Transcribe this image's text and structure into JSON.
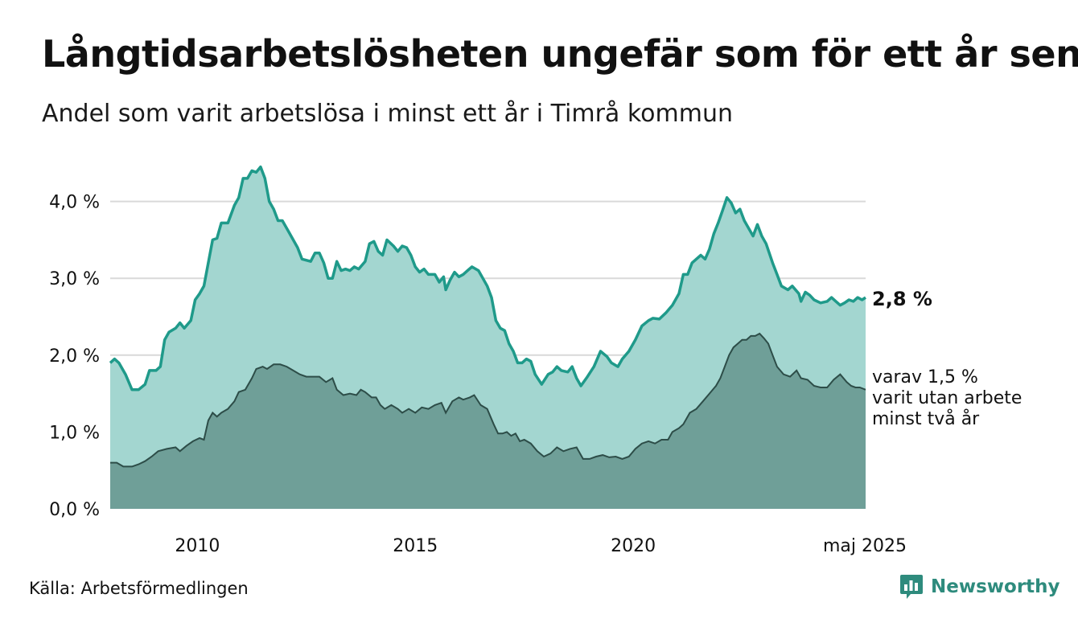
{
  "title": "Långtidsarbetslösheten ungefär som för ett år sen",
  "subtitle": "Andel som varit arbetslösa i minst ett år i Timrå kommun",
  "source": "Källa: Arbetsförmedlingen",
  "brand": "Newsworthy",
  "colors": {
    "area_total": "#a3d6d0",
    "line_total": "#1f9a8a",
    "area_two_year": "#6f9f98",
    "line_two_year": "#2d4d48",
    "grid": "#d9d9d9",
    "brand": "#2e8b7d"
  },
  "labels": {
    "latest_total": "2,8 %",
    "two_year_line1": "varav 1,5 %",
    "two_year_line2": "varit utan arbete",
    "two_year_line3": "minst två år"
  },
  "chart_data": {
    "type": "area",
    "title": "Långtidsarbetslösheten ungefär som för ett år sen",
    "subtitle": "Andel som varit arbetslösa i minst ett år i Timrå kommun",
    "xlabel": "",
    "ylabel": "",
    "x_start": 2008.0,
    "x_end": 2025.333,
    "ylim": [
      0,
      4.4
    ],
    "yticks": [
      {
        "value": 0,
        "label": "0,0 %"
      },
      {
        "value": 1,
        "label": "1,0 %"
      },
      {
        "value": 2,
        "label": "2,0 %"
      },
      {
        "value": 3,
        "label": "3,0 %"
      },
      {
        "value": 4,
        "label": "4,0 %"
      }
    ],
    "xticks": [
      {
        "value": 2010,
        "label": "2010"
      },
      {
        "value": 2015,
        "label": "2015"
      },
      {
        "value": 2020,
        "label": "2020"
      },
      {
        "value": 2025.333,
        "label": "maj 2025"
      }
    ],
    "grid": true,
    "legend": "none",
    "series": [
      {
        "key": "total",
        "points": [
          [
            2008.0,
            1.9
          ],
          [
            2008.1,
            1.95
          ],
          [
            2008.2,
            1.9
          ],
          [
            2008.35,
            1.75
          ],
          [
            2008.5,
            1.55
          ],
          [
            2008.65,
            1.55
          ],
          [
            2008.8,
            1.62
          ],
          [
            2008.9,
            1.8
          ],
          [
            2009.05,
            1.8
          ],
          [
            2009.15,
            1.85
          ],
          [
            2009.25,
            2.2
          ],
          [
            2009.35,
            2.3
          ],
          [
            2009.5,
            2.35
          ],
          [
            2009.6,
            2.42
          ],
          [
            2009.7,
            2.35
          ],
          [
            2009.85,
            2.45
          ],
          [
            2009.95,
            2.72
          ],
          [
            2010.05,
            2.8
          ],
          [
            2010.15,
            2.9
          ],
          [
            2010.25,
            3.2
          ],
          [
            2010.35,
            3.5
          ],
          [
            2010.45,
            3.52
          ],
          [
            2010.55,
            3.72
          ],
          [
            2010.7,
            3.72
          ],
          [
            2010.85,
            3.95
          ],
          [
            2010.95,
            4.05
          ],
          [
            2011.05,
            4.3
          ],
          [
            2011.15,
            4.3
          ],
          [
            2011.25,
            4.4
          ],
          [
            2011.35,
            4.38
          ],
          [
            2011.45,
            4.45
          ],
          [
            2011.55,
            4.3
          ],
          [
            2011.65,
            4.0
          ],
          [
            2011.75,
            3.9
          ],
          [
            2011.85,
            3.75
          ],
          [
            2011.95,
            3.75
          ],
          [
            2012.1,
            3.6
          ],
          [
            2012.3,
            3.4
          ],
          [
            2012.4,
            3.25
          ],
          [
            2012.6,
            3.22
          ],
          [
            2012.7,
            3.33
          ],
          [
            2012.8,
            3.33
          ],
          [
            2012.9,
            3.2
          ],
          [
            2013.0,
            3.0
          ],
          [
            2013.1,
            3.0
          ],
          [
            2013.2,
            3.22
          ],
          [
            2013.3,
            3.1
          ],
          [
            2013.4,
            3.12
          ],
          [
            2013.5,
            3.1
          ],
          [
            2013.6,
            3.15
          ],
          [
            2013.7,
            3.12
          ],
          [
            2013.85,
            3.22
          ],
          [
            2013.95,
            3.45
          ],
          [
            2014.05,
            3.48
          ],
          [
            2014.15,
            3.35
          ],
          [
            2014.25,
            3.3
          ],
          [
            2014.35,
            3.5
          ],
          [
            2014.5,
            3.42
          ],
          [
            2014.6,
            3.35
          ],
          [
            2014.7,
            3.42
          ],
          [
            2014.8,
            3.4
          ],
          [
            2014.9,
            3.3
          ],
          [
            2015.0,
            3.15
          ],
          [
            2015.1,
            3.08
          ],
          [
            2015.2,
            3.12
          ],
          [
            2015.3,
            3.05
          ],
          [
            2015.45,
            3.05
          ],
          [
            2015.55,
            2.95
          ],
          [
            2015.65,
            3.02
          ],
          [
            2015.7,
            2.85
          ],
          [
            2015.8,
            2.98
          ],
          [
            2015.9,
            3.08
          ],
          [
            2016.0,
            3.02
          ],
          [
            2016.1,
            3.05
          ],
          [
            2016.2,
            3.1
          ],
          [
            2016.3,
            3.15
          ],
          [
            2016.45,
            3.1
          ],
          [
            2016.55,
            3.0
          ],
          [
            2016.65,
            2.9
          ],
          [
            2016.75,
            2.75
          ],
          [
            2016.85,
            2.45
          ],
          [
            2016.95,
            2.35
          ],
          [
            2017.05,
            2.32
          ],
          [
            2017.15,
            2.15
          ],
          [
            2017.25,
            2.05
          ],
          [
            2017.35,
            1.9
          ],
          [
            2017.45,
            1.9
          ],
          [
            2017.55,
            1.95
          ],
          [
            2017.65,
            1.92
          ],
          [
            2017.75,
            1.75
          ],
          [
            2017.9,
            1.62
          ],
          [
            2018.05,
            1.75
          ],
          [
            2018.15,
            1.78
          ],
          [
            2018.25,
            1.85
          ],
          [
            2018.35,
            1.8
          ],
          [
            2018.5,
            1.78
          ],
          [
            2018.6,
            1.85
          ],
          [
            2018.7,
            1.7
          ],
          [
            2018.8,
            1.6
          ],
          [
            2018.95,
            1.72
          ],
          [
            2019.1,
            1.85
          ],
          [
            2019.25,
            2.05
          ],
          [
            2019.4,
            1.98
          ],
          [
            2019.5,
            1.9
          ],
          [
            2019.65,
            1.85
          ],
          [
            2019.75,
            1.95
          ],
          [
            2019.9,
            2.05
          ],
          [
            2020.05,
            2.2
          ],
          [
            2020.2,
            2.38
          ],
          [
            2020.35,
            2.45
          ],
          [
            2020.45,
            2.48
          ],
          [
            2020.6,
            2.47
          ],
          [
            2020.75,
            2.55
          ],
          [
            2020.9,
            2.65
          ],
          [
            2021.05,
            2.8
          ],
          [
            2021.15,
            3.05
          ],
          [
            2021.25,
            3.05
          ],
          [
            2021.35,
            3.2
          ],
          [
            2021.45,
            3.25
          ],
          [
            2021.55,
            3.3
          ],
          [
            2021.65,
            3.25
          ],
          [
            2021.75,
            3.38
          ],
          [
            2021.85,
            3.58
          ],
          [
            2021.95,
            3.72
          ],
          [
            2022.05,
            3.88
          ],
          [
            2022.15,
            4.05
          ],
          [
            2022.25,
            3.98
          ],
          [
            2022.35,
            3.85
          ],
          [
            2022.45,
            3.9
          ],
          [
            2022.55,
            3.75
          ],
          [
            2022.65,
            3.65
          ],
          [
            2022.75,
            3.55
          ],
          [
            2022.85,
            3.7
          ],
          [
            2022.95,
            3.55
          ],
          [
            2023.05,
            3.45
          ],
          [
            2023.2,
            3.2
          ],
          [
            2023.3,
            3.05
          ],
          [
            2023.4,
            2.9
          ],
          [
            2023.55,
            2.85
          ],
          [
            2023.65,
            2.9
          ],
          [
            2023.8,
            2.8
          ],
          [
            2023.85,
            2.7
          ],
          [
            2023.95,
            2.82
          ],
          [
            2024.05,
            2.78
          ],
          [
            2024.15,
            2.72
          ],
          [
            2024.3,
            2.68
          ],
          [
            2024.45,
            2.7
          ],
          [
            2024.55,
            2.75
          ],
          [
            2024.65,
            2.7
          ],
          [
            2024.75,
            2.65
          ],
          [
            2024.85,
            2.68
          ],
          [
            2024.95,
            2.72
          ],
          [
            2025.05,
            2.7
          ],
          [
            2025.15,
            2.75
          ],
          [
            2025.25,
            2.72
          ],
          [
            2025.333,
            2.75
          ]
        ]
      },
      {
        "key": "two_year",
        "points": [
          [
            2008.0,
            0.6
          ],
          [
            2008.15,
            0.6
          ],
          [
            2008.3,
            0.55
          ],
          [
            2008.5,
            0.55
          ],
          [
            2008.65,
            0.58
          ],
          [
            2008.8,
            0.62
          ],
          [
            2008.95,
            0.68
          ],
          [
            2009.1,
            0.75
          ],
          [
            2009.3,
            0.78
          ],
          [
            2009.5,
            0.8
          ],
          [
            2009.6,
            0.75
          ],
          [
            2009.75,
            0.82
          ],
          [
            2009.9,
            0.88
          ],
          [
            2010.05,
            0.92
          ],
          [
            2010.15,
            0.9
          ],
          [
            2010.25,
            1.15
          ],
          [
            2010.35,
            1.25
          ],
          [
            2010.45,
            1.2
          ],
          [
            2010.55,
            1.25
          ],
          [
            2010.7,
            1.3
          ],
          [
            2010.85,
            1.4
          ],
          [
            2010.95,
            1.52
          ],
          [
            2011.1,
            1.55
          ],
          [
            2011.25,
            1.7
          ],
          [
            2011.35,
            1.82
          ],
          [
            2011.5,
            1.85
          ],
          [
            2011.6,
            1.82
          ],
          [
            2011.75,
            1.88
          ],
          [
            2011.9,
            1.88
          ],
          [
            2012.05,
            1.85
          ],
          [
            2012.2,
            1.8
          ],
          [
            2012.35,
            1.75
          ],
          [
            2012.5,
            1.72
          ],
          [
            2012.65,
            1.72
          ],
          [
            2012.8,
            1.72
          ],
          [
            2012.95,
            1.65
          ],
          [
            2013.1,
            1.7
          ],
          [
            2013.2,
            1.55
          ],
          [
            2013.35,
            1.48
          ],
          [
            2013.5,
            1.5
          ],
          [
            2013.65,
            1.48
          ],
          [
            2013.75,
            1.55
          ],
          [
            2013.85,
            1.52
          ],
          [
            2014.0,
            1.45
          ],
          [
            2014.1,
            1.45
          ],
          [
            2014.2,
            1.35
          ],
          [
            2014.3,
            1.3
          ],
          [
            2014.45,
            1.35
          ],
          [
            2014.6,
            1.3
          ],
          [
            2014.7,
            1.25
          ],
          [
            2014.85,
            1.3
          ],
          [
            2015.0,
            1.25
          ],
          [
            2015.15,
            1.32
          ],
          [
            2015.3,
            1.3
          ],
          [
            2015.45,
            1.35
          ],
          [
            2015.6,
            1.38
          ],
          [
            2015.7,
            1.25
          ],
          [
            2015.85,
            1.4
          ],
          [
            2016.0,
            1.45
          ],
          [
            2016.1,
            1.42
          ],
          [
            2016.25,
            1.45
          ],
          [
            2016.35,
            1.48
          ],
          [
            2016.5,
            1.35
          ],
          [
            2016.65,
            1.3
          ],
          [
            2016.8,
            1.1
          ],
          [
            2016.9,
            0.98
          ],
          [
            2017.0,
            0.98
          ],
          [
            2017.1,
            1.0
          ],
          [
            2017.2,
            0.95
          ],
          [
            2017.3,
            0.98
          ],
          [
            2017.4,
            0.88
          ],
          [
            2017.5,
            0.9
          ],
          [
            2017.65,
            0.85
          ],
          [
            2017.8,
            0.75
          ],
          [
            2017.95,
            0.68
          ],
          [
            2018.1,
            0.72
          ],
          [
            2018.25,
            0.8
          ],
          [
            2018.4,
            0.75
          ],
          [
            2018.55,
            0.78
          ],
          [
            2018.7,
            0.8
          ],
          [
            2018.85,
            0.65
          ],
          [
            2019.0,
            0.65
          ],
          [
            2019.15,
            0.68
          ],
          [
            2019.3,
            0.7
          ],
          [
            2019.45,
            0.67
          ],
          [
            2019.6,
            0.68
          ],
          [
            2019.75,
            0.65
          ],
          [
            2019.9,
            0.68
          ],
          [
            2020.05,
            0.78
          ],
          [
            2020.2,
            0.85
          ],
          [
            2020.35,
            0.88
          ],
          [
            2020.5,
            0.85
          ],
          [
            2020.65,
            0.9
          ],
          [
            2020.8,
            0.9
          ],
          [
            2020.9,
            1.0
          ],
          [
            2021.05,
            1.05
          ],
          [
            2021.15,
            1.1
          ],
          [
            2021.3,
            1.25
          ],
          [
            2021.45,
            1.3
          ],
          [
            2021.6,
            1.4
          ],
          [
            2021.75,
            1.5
          ],
          [
            2021.9,
            1.6
          ],
          [
            2022.0,
            1.7
          ],
          [
            2022.1,
            1.85
          ],
          [
            2022.2,
            2.0
          ],
          [
            2022.3,
            2.1
          ],
          [
            2022.4,
            2.15
          ],
          [
            2022.5,
            2.2
          ],
          [
            2022.6,
            2.2
          ],
          [
            2022.7,
            2.25
          ],
          [
            2022.8,
            2.25
          ],
          [
            2022.9,
            2.28
          ],
          [
            2023.0,
            2.22
          ],
          [
            2023.1,
            2.15
          ],
          [
            2023.2,
            2.0
          ],
          [
            2023.3,
            1.85
          ],
          [
            2023.45,
            1.75
          ],
          [
            2023.6,
            1.72
          ],
          [
            2023.75,
            1.8
          ],
          [
            2023.85,
            1.7
          ],
          [
            2024.0,
            1.68
          ],
          [
            2024.15,
            1.6
          ],
          [
            2024.3,
            1.58
          ],
          [
            2024.45,
            1.58
          ],
          [
            2024.6,
            1.68
          ],
          [
            2024.75,
            1.75
          ],
          [
            2024.9,
            1.65
          ],
          [
            2025.0,
            1.6
          ],
          [
            2025.1,
            1.58
          ],
          [
            2025.2,
            1.58
          ],
          [
            2025.333,
            1.55
          ]
        ]
      }
    ]
  }
}
